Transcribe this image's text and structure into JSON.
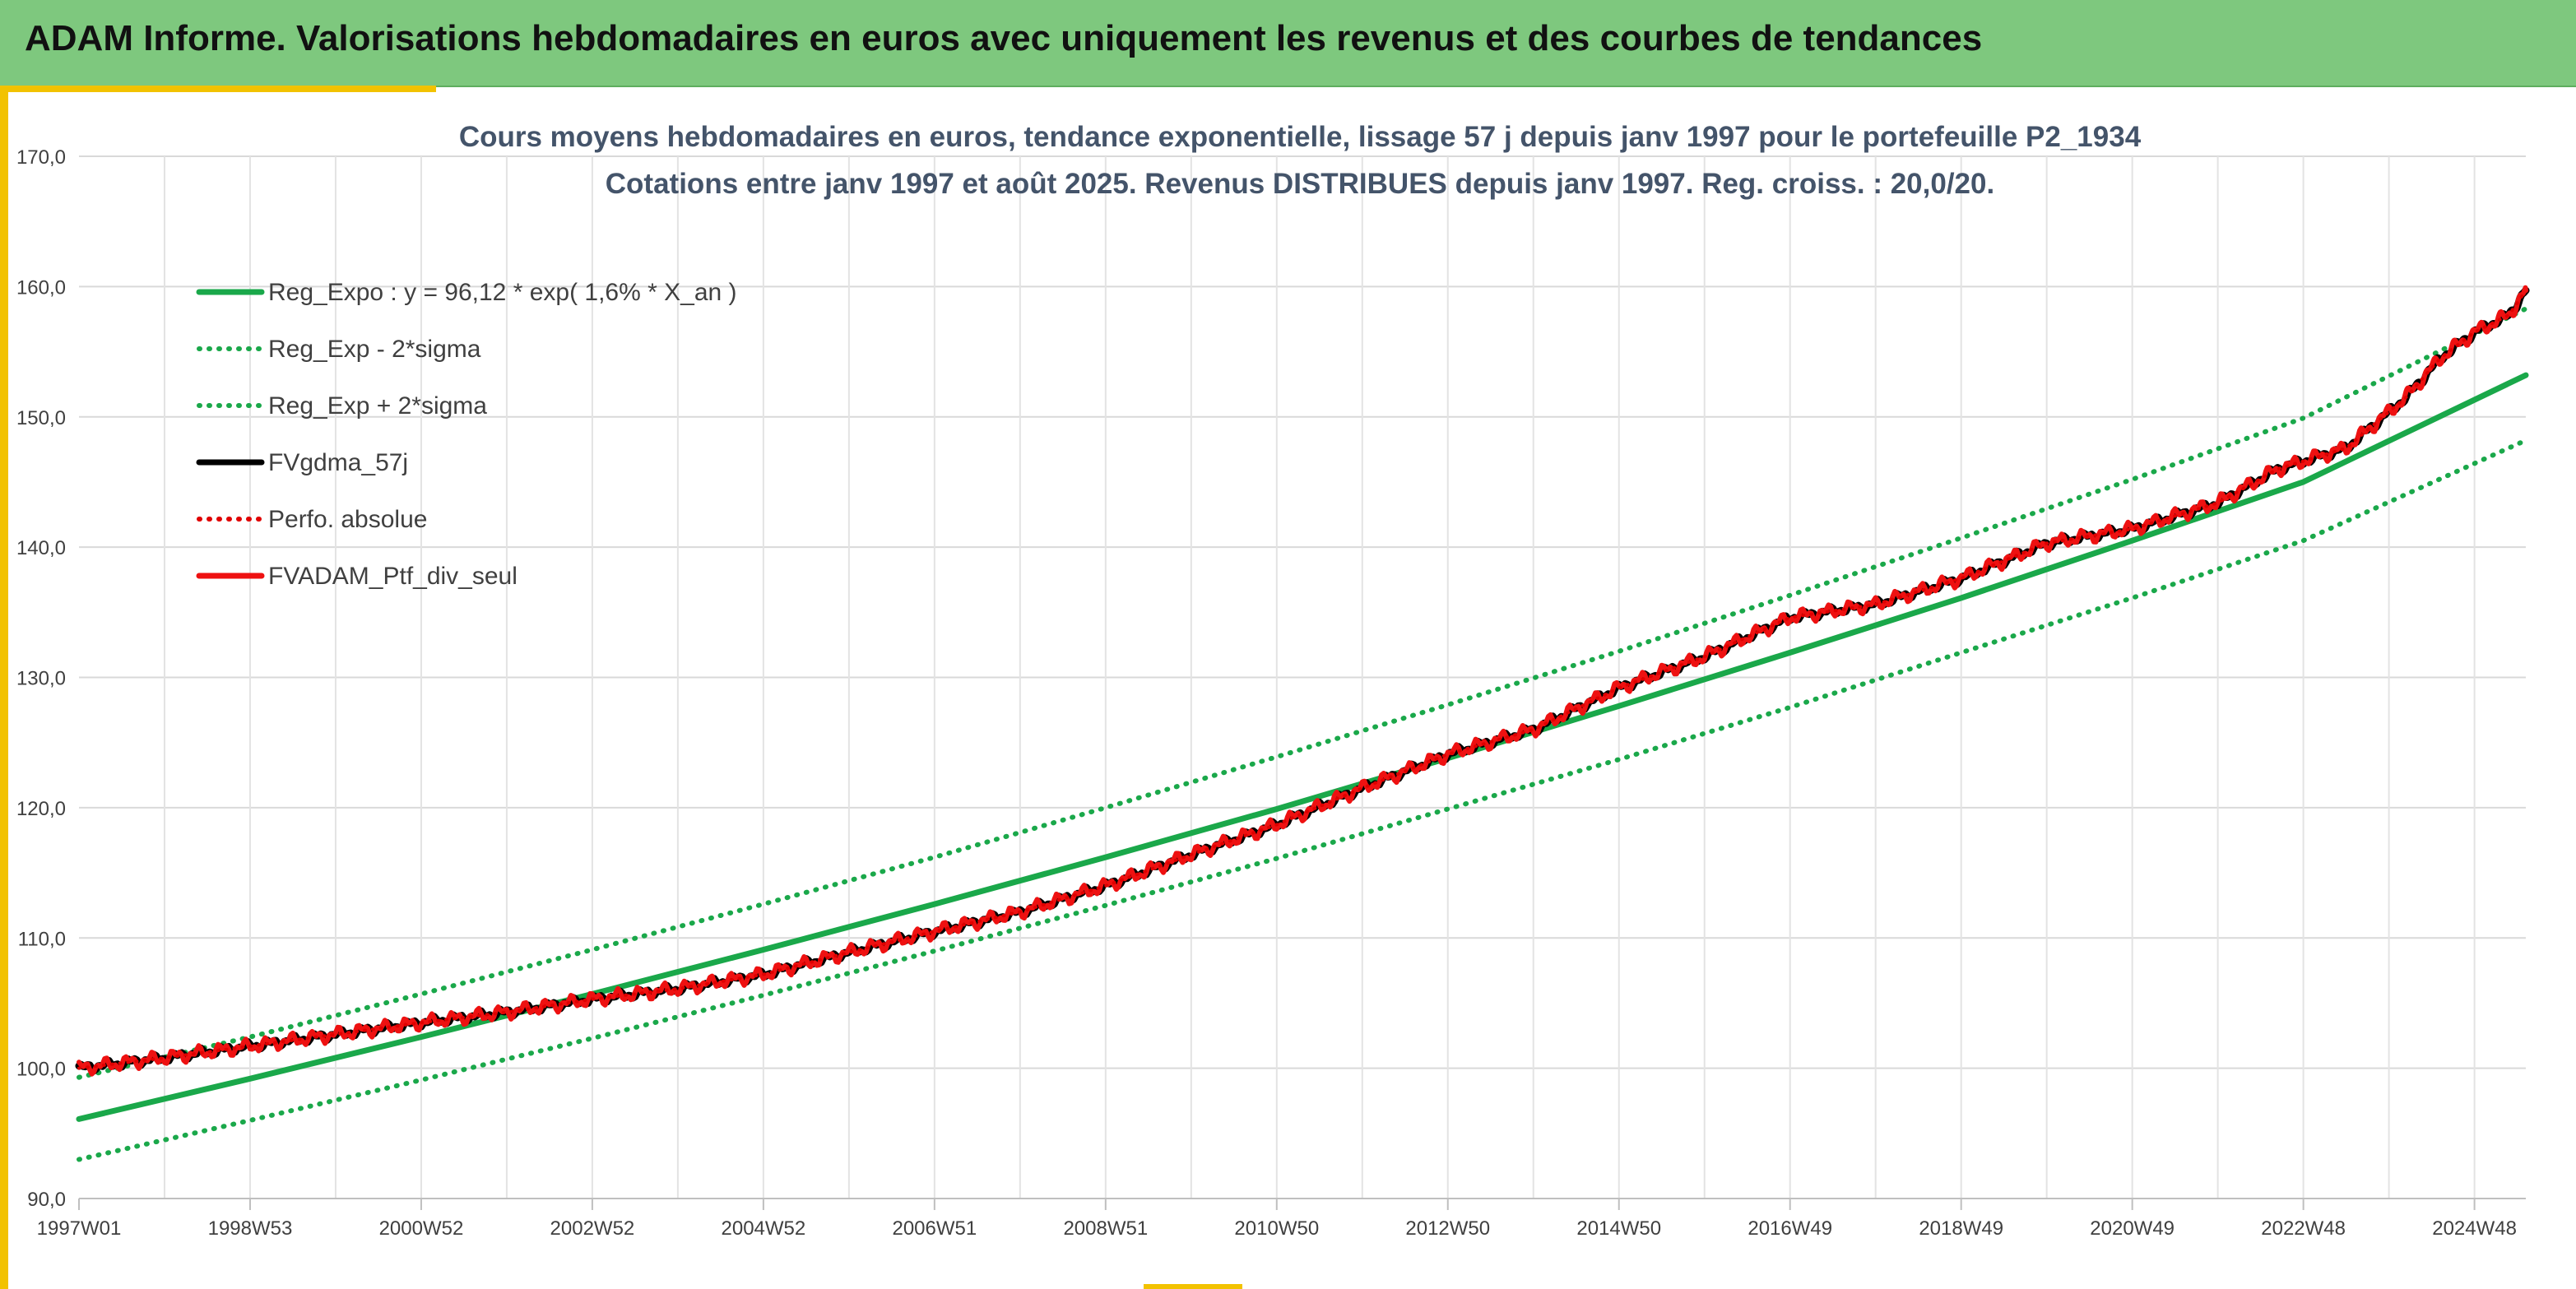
{
  "header": {
    "title": "ADAM Informe. Valorisations hebdomadaires en euros avec uniquement les revenus et des courbes de tendances"
  },
  "chart_data": {
    "type": "line",
    "title_line1": "Cours moyens hebdomadaires en euros, tendance exponentielle, lissage 57 j depuis janv 1997 pour le portefeuille P2_1934",
    "title_line2": "Cotations entre janv 1997 et août 2025. Revenus DISTRIBUES depuis janv 1997. Reg. croiss. : 20,0/20.",
    "x_range": [
      "1997W01",
      "2025W35"
    ],
    "x_ticks": [
      "1997W01",
      "1998W53",
      "2000W52",
      "2002W52",
      "2004W52",
      "2006W51",
      "2008W51",
      "2010W50",
      "2012W50",
      "2014W50",
      "2016W49",
      "2018W49",
      "2020W49",
      "2022W48",
      "2024W48"
    ],
    "y_ticks": [
      "90,0",
      "100,0",
      "110,0",
      "120,0",
      "130,0",
      "140,0",
      "150,0",
      "160,0",
      "170,0"
    ],
    "ylim": [
      90,
      170
    ],
    "grid": true,
    "legend_position": "top-left",
    "colors": {
      "trend": "#1aa84a",
      "fv": "#000000",
      "perf": "#e00000",
      "ptf": "#ee1111"
    },
    "series": [
      {
        "name": "Reg_Expo : y = 96,12 * exp( 1,6% *  X_an )",
        "style": "solid",
        "color": "#1aa84a",
        "x": [
          1997.0,
          1999.0,
          2001.0,
          2003.0,
          2005.0,
          2007.0,
          2009.0,
          2011.0,
          2013.0,
          2015.0,
          2017.0,
          2019.0,
          2021.0,
          2023.0,
          2025.6
        ],
        "y": [
          96.1,
          99.2,
          102.4,
          105.7,
          109.1,
          112.6,
          116.2,
          119.9,
          123.8,
          127.8,
          131.9,
          136.1,
          140.5,
          145.0,
          153.2
        ]
      },
      {
        "name": "Reg_Exp - 2*sigma",
        "style": "dotted",
        "color": "#1aa84a",
        "x": [
          1997.0,
          1999.0,
          2001.0,
          2003.0,
          2005.0,
          2007.0,
          2009.0,
          2011.0,
          2013.0,
          2015.0,
          2017.0,
          2019.0,
          2021.0,
          2023.0,
          2025.6
        ],
        "y": [
          93.0,
          96.0,
          99.1,
          102.3,
          105.6,
          109.0,
          112.5,
          116.1,
          119.9,
          123.7,
          127.7,
          131.9,
          136.1,
          140.5,
          148.2
        ]
      },
      {
        "name": "Reg_Exp + 2*sigma",
        "style": "dotted",
        "color": "#1aa84a",
        "x": [
          1997.0,
          1999.0,
          2001.0,
          2003.0,
          2005.0,
          2007.0,
          2009.0,
          2011.0,
          2013.0,
          2015.0,
          2017.0,
          2019.0,
          2021.0,
          2023.0,
          2025.6
        ],
        "y": [
          99.3,
          102.4,
          105.7,
          109.1,
          112.6,
          116.2,
          120.0,
          123.9,
          127.9,
          132.0,
          136.3,
          140.7,
          145.2,
          149.9,
          158.3
        ]
      },
      {
        "name": "FVgdma_57j",
        "style": "solid",
        "color": "#000000",
        "x": [
          1997.0,
          1998.0,
          1999.0,
          2000.0,
          2001.0,
          2002.0,
          2003.0,
          2004.0,
          2005.0,
          2006.0,
          2007.0,
          2008.0,
          2009.0,
          2010.0,
          2011.0,
          2012.0,
          2013.0,
          2014.0,
          2015.0,
          2016.0,
          2017.0,
          2018.0,
          2019.0,
          2020.0,
          2021.0,
          2022.0,
          2022.7,
          2023.5,
          2024.2,
          2024.6,
          2025.0,
          2025.4,
          2025.6
        ],
        "y": [
          100.0,
          100.8,
          101.7,
          102.6,
          103.5,
          104.3,
          105.3,
          106.1,
          107.2,
          108.9,
          110.5,
          112.0,
          114.0,
          116.4,
          118.7,
          121.5,
          124.1,
          126.0,
          129.2,
          131.6,
          134.6,
          135.6,
          137.6,
          140.3,
          141.4,
          143.4,
          146.0,
          147.6,
          151.5,
          154.5,
          156.5,
          157.8,
          159.7
        ]
      },
      {
        "name": "Perfo. absolue",
        "style": "dotted",
        "color": "#e00000",
        "x": [
          1997.0,
          1998.0,
          1999.0,
          2000.0,
          2001.0,
          2002.0,
          2003.0,
          2004.0,
          2005.0,
          2006.0,
          2007.0,
          2008.0,
          2009.0,
          2010.0,
          2011.0,
          2012.0,
          2013.0,
          2014.0,
          2015.0,
          2016.0,
          2017.0,
          2018.0,
          2019.0,
          2020.0,
          2021.0,
          2022.0,
          2022.7,
          2023.5,
          2024.2,
          2024.6,
          2025.0,
          2025.4,
          2025.6
        ],
        "y": [
          100.0,
          100.8,
          101.7,
          102.6,
          103.5,
          104.3,
          105.3,
          106.1,
          107.2,
          108.9,
          110.5,
          112.0,
          114.0,
          116.4,
          118.7,
          121.5,
          124.1,
          126.0,
          129.2,
          131.6,
          134.6,
          135.6,
          137.6,
          140.3,
          141.4,
          143.4,
          146.0,
          147.6,
          151.5,
          154.5,
          156.5,
          157.8,
          159.7
        ]
      },
      {
        "name": "FVADAM_Ptf_div_seul",
        "style": "solid",
        "color": "#ee1111",
        "x": [
          1997.0,
          1998.0,
          1999.0,
          2000.0,
          2001.0,
          2002.0,
          2003.0,
          2004.0,
          2005.0,
          2006.0,
          2007.0,
          2008.0,
          2009.0,
          2010.0,
          2011.0,
          2012.0,
          2013.0,
          2014.0,
          2015.0,
          2016.0,
          2017.0,
          2018.0,
          2019.0,
          2020.0,
          2021.0,
          2022.0,
          2022.7,
          2023.5,
          2024.2,
          2024.6,
          2025.0,
          2025.4,
          2025.6
        ],
        "y": [
          100.0,
          100.8,
          101.7,
          102.6,
          103.5,
          104.3,
          105.3,
          106.1,
          107.2,
          108.9,
          110.5,
          112.0,
          114.0,
          116.4,
          118.7,
          121.5,
          124.1,
          126.0,
          129.2,
          131.6,
          134.6,
          135.6,
          137.6,
          140.3,
          141.4,
          143.4,
          146.0,
          147.6,
          151.5,
          154.5,
          156.5,
          157.8,
          159.7
        ]
      }
    ]
  }
}
